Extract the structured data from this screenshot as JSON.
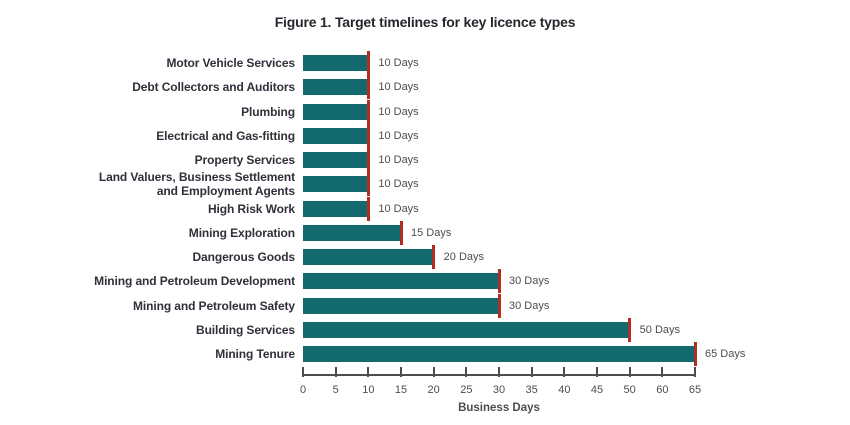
{
  "title": "Figure 1. Target timelines for key licence types",
  "chart_data": {
    "type": "bar",
    "orientation": "horizontal",
    "categories": [
      "Motor Vehicle Services",
      "Debt Collectors and Auditors",
      "Plumbing",
      "Electrical and Gas-fitting",
      "Property Services",
      "Land Valuers, Business Settlement and Employment Agents",
      "High Risk Work",
      "Mining Exploration",
      "Dangerous Goods",
      "Mining and Petroleum Development",
      "Mining and Petroleum Safety",
      "Building Services",
      "Mining Tenure"
    ],
    "values": [
      10,
      10,
      10,
      10,
      10,
      10,
      10,
      15,
      20,
      30,
      30,
      50,
      65
    ],
    "value_labels": [
      "10 Days",
      "10 Days",
      "10 Days",
      "10 Days",
      "10 Days",
      "10 Days",
      "10 Days",
      "15 Days",
      "20 Days",
      "30 Days",
      "30 Days",
      "50 Days",
      "65 Days"
    ],
    "xlabel": "Business Days",
    "x_tick_labels": [
      "0",
      "5",
      "10",
      "15",
      "20",
      "25",
      "30",
      "35",
      "40",
      "45",
      "50",
      "60",
      "65"
    ],
    "xlim": [
      0,
      65
    ],
    "grid": false,
    "legend": "none",
    "bar_color": "#136a6e",
    "marker_color": "#b22e23"
  }
}
